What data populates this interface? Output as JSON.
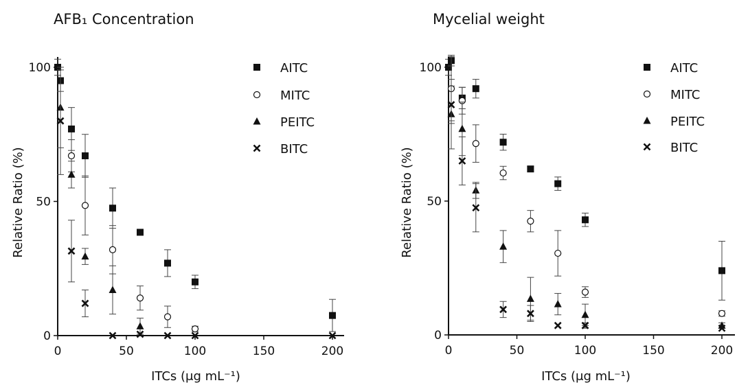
{
  "chart_data": [
    {
      "type": "scatter",
      "title": "AFB₁ Concentration",
      "xlabel": "ITCs (μg mL⁻¹)",
      "ylabel": "Relative Ratio (%)",
      "xlim": [
        0,
        200
      ],
      "ylim": [
        0,
        100
      ],
      "xticks": [
        "0",
        "50",
        "100",
        "150",
        "200"
      ],
      "yticks": [
        "0",
        "50",
        "100"
      ],
      "legend": "top-right",
      "grid": false,
      "series": [
        {
          "name": "AITC",
          "marker": "square",
          "x": [
            0,
            2,
            10,
            20,
            40,
            60,
            80,
            100,
            200
          ],
          "y": [
            100,
            95,
            77,
            67,
            47.5,
            38.5,
            27,
            20,
            7.5
          ],
          "err": [
            3,
            4,
            8,
            8,
            7.5,
            0.5,
            5,
            2.5,
            6
          ]
        },
        {
          "name": "MITC",
          "marker": "circle",
          "x": [
            10,
            20,
            40,
            60,
            80,
            100
          ],
          "y": [
            67,
            48.5,
            32,
            14,
            7,
            2.5
          ],
          "err": [
            6,
            11,
            9,
            4.5,
            4,
            1
          ]
        },
        {
          "name": "PEITC",
          "marker": "triangle",
          "x": [
            2,
            10,
            20,
            40,
            60
          ],
          "y": [
            85,
            60,
            29.5,
            17,
            3.5
          ],
          "err": [
            15,
            5,
            3,
            9,
            3
          ]
        },
        {
          "name": "BITC",
          "marker": "x",
          "x": [
            2,
            10,
            20,
            40,
            60,
            80,
            100,
            200
          ],
          "y": [
            80,
            31.5,
            12,
            0,
            0.5,
            0,
            0,
            0
          ],
          "err": [
            20,
            11.5,
            5,
            0,
            0,
            0,
            0,
            0
          ]
        }
      ]
    },
    {
      "type": "scatter",
      "title": "Mycelial weight",
      "xlabel": "ITCs (μg mL⁻¹)",
      "ylabel": "Relative Ratio (%)",
      "xlim": [
        0,
        200
      ],
      "ylim": [
        0,
        100
      ],
      "xticks": [
        "0",
        "50",
        "100",
        "150",
        "200"
      ],
      "yticks": [
        "0",
        "50",
        "100"
      ],
      "legend": "top-right",
      "grid": false,
      "series": [
        {
          "name": "AITC",
          "marker": "square",
          "x": [
            0,
            2,
            10,
            20,
            40,
            60,
            80,
            100,
            200
          ],
          "y": [
            100,
            102.5,
            88.5,
            92,
            72,
            62,
            56.5,
            43,
            24
          ],
          "err": [
            3,
            2,
            4,
            3.5,
            3,
            1,
            2.5,
            2.5,
            11
          ]
        },
        {
          "name": "MITC",
          "marker": "circle",
          "x": [
            2,
            10,
            20,
            40,
            60,
            80,
            100,
            200
          ],
          "y": [
            92,
            87.5,
            71.5,
            60.5,
            42.5,
            30.5,
            16,
            8
          ],
          "err": [
            12,
            5,
            7,
            2.5,
            4,
            8.5,
            2,
            1
          ]
        },
        {
          "name": "PEITC",
          "marker": "triangle",
          "x": [
            2,
            10,
            20,
            40,
            60,
            80,
            100,
            200
          ],
          "y": [
            82.5,
            77,
            54,
            33,
            13.5,
            11.5,
            7.5,
            3.5
          ],
          "err": [
            13,
            10,
            3,
            6,
            8,
            4,
            4,
            1
          ]
        },
        {
          "name": "BITC",
          "marker": "x",
          "x": [
            2,
            10,
            20,
            40,
            60,
            80,
            100,
            200
          ],
          "y": [
            86,
            65,
            47.5,
            9.5,
            8,
            3.5,
            3.5,
            2.5
          ],
          "err": [
            7,
            9,
            9,
            3,
            3,
            0,
            1,
            0
          ]
        }
      ]
    }
  ]
}
